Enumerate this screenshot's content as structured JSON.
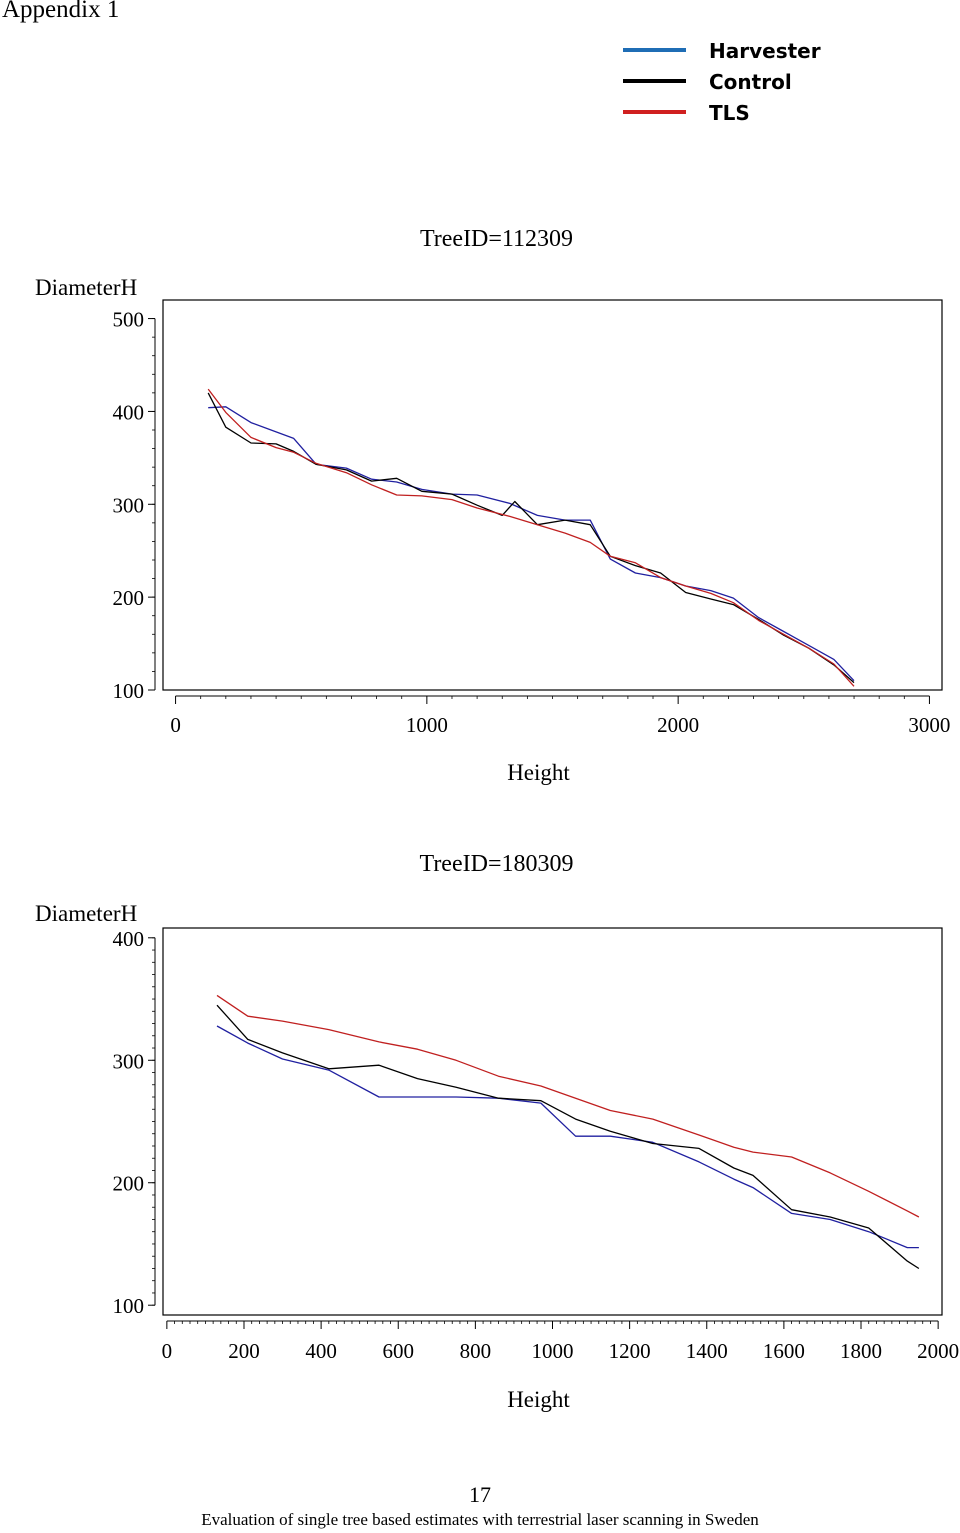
{
  "header": {
    "title": "Appendix 1"
  },
  "legend": {
    "entries": [
      {
        "label": "Harvester",
        "color": "#1f6db5"
      },
      {
        "label": "Control",
        "color": "#000000"
      },
      {
        "label": "TLS",
        "color": "#d02020"
      }
    ]
  },
  "footer": {
    "page_number": "17",
    "text": "Evaluation of single tree based estimates with terrestrial laser scanning in Sweden"
  },
  "chart_data": [
    {
      "type": "line",
      "title": "TreeID=112309",
      "xlabel": "Height",
      "ylabel": "DiameterH",
      "xlim": [
        -50,
        3050
      ],
      "ylim": [
        100,
        520
      ],
      "xticks": [
        0,
        1000,
        2000,
        3000
      ],
      "xtick_labels": [
        "0",
        "1000",
        "2000",
        "3000"
      ],
      "yticks": [
        100,
        200,
        300,
        400,
        500
      ],
      "ytick_labels": [
        "100",
        "200",
        "300",
        "400",
        "500"
      ],
      "grid": false,
      "series": [
        {
          "name": "Harvester",
          "color": "#2020a0",
          "x": [
            130,
            200,
            300,
            400,
            470,
            560,
            680,
            780,
            880,
            980,
            1100,
            1200,
            1330,
            1440,
            1550,
            1650,
            1730,
            1830,
            1930,
            2030,
            2130,
            2220,
            2320,
            2420,
            2520,
            2620,
            2700
          ],
          "y": [
            404,
            405,
            388,
            378,
            371,
            343,
            339,
            327,
            324,
            316,
            311,
            310,
            301,
            288,
            283,
            283,
            241,
            226,
            221,
            212,
            207,
            199,
            178,
            163,
            148,
            133,
            110
          ]
        },
        {
          "name": "Control",
          "color": "#000000",
          "x": [
            130,
            200,
            300,
            400,
            470,
            560,
            680,
            780,
            880,
            980,
            1100,
            1200,
            1300,
            1350,
            1440,
            1550,
            1650,
            1730,
            1830,
            1930,
            2030,
            2130,
            2220,
            2320,
            2420,
            2520,
            2620,
            2700
          ],
          "y": [
            420,
            383,
            366,
            365,
            357,
            343,
            337,
            325,
            328,
            314,
            311,
            299,
            288,
            303,
            278,
            283,
            278,
            244,
            234,
            226,
            205,
            198,
            192,
            176,
            159,
            145,
            127,
            108
          ]
        },
        {
          "name": "TLS",
          "color": "#c02020",
          "x": [
            130,
            200,
            300,
            400,
            470,
            560,
            680,
            780,
            880,
            980,
            1100,
            1200,
            1330,
            1440,
            1550,
            1650,
            1730,
            1830,
            1930,
            2030,
            2130,
            2220,
            2320,
            2420,
            2520,
            2620,
            2700
          ],
          "y": [
            424,
            399,
            372,
            361,
            356,
            344,
            334,
            321,
            310,
            309,
            305,
            296,
            287,
            278,
            269,
            259,
            244,
            237,
            221,
            212,
            204,
            194,
            175,
            160,
            145,
            128,
            104
          ]
        }
      ]
    },
    {
      "type": "line",
      "title": "TreeID=180309",
      "xlabel": "Height",
      "ylabel": "DiameterH",
      "xlim": [
        -10,
        2010
      ],
      "ylim": [
        92,
        408
      ],
      "xticks": [
        0,
        200,
        400,
        600,
        800,
        1000,
        1200,
        1400,
        1600,
        1800,
        2000
      ],
      "xtick_labels": [
        "0",
        "200",
        "400",
        "600",
        "800",
        "1000",
        "1200",
        "1400",
        "1600",
        "1800",
        "2000"
      ],
      "yticks": [
        100,
        200,
        300,
        400
      ],
      "ytick_labels": [
        "100",
        "200",
        "300",
        "400"
      ],
      "grid": false,
      "series": [
        {
          "name": "Harvester",
          "color": "#2020a0",
          "x": [
            130,
            210,
            300,
            420,
            550,
            650,
            750,
            860,
            970,
            1060,
            1150,
            1260,
            1380,
            1470,
            1520,
            1620,
            1720,
            1820,
            1920,
            1950
          ],
          "y": [
            328,
            314,
            301,
            292,
            270,
            270,
            270,
            269,
            265,
            238,
            238,
            233,
            217,
            203,
            196,
            175,
            170,
            160,
            147,
            147
          ]
        },
        {
          "name": "Control",
          "color": "#000000",
          "x": [
            130,
            210,
            300,
            420,
            550,
            650,
            750,
            860,
            970,
            1060,
            1150,
            1260,
            1380,
            1470,
            1520,
            1620,
            1720,
            1820,
            1920,
            1950
          ],
          "y": [
            345,
            317,
            306,
            293,
            296,
            285,
            278,
            269,
            267,
            252,
            242,
            232,
            228,
            212,
            206,
            178,
            172,
            163,
            136,
            130
          ]
        },
        {
          "name": "TLS",
          "color": "#c02020",
          "x": [
            130,
            210,
            300,
            420,
            550,
            650,
            750,
            860,
            970,
            1060,
            1150,
            1260,
            1380,
            1470,
            1520,
            1620,
            1720,
            1820,
            1920,
            1950
          ],
          "y": [
            353,
            336,
            332,
            325,
            315,
            309,
            300,
            287,
            279,
            269,
            259,
            252,
            239,
            229,
            225,
            221,
            208,
            193,
            177,
            172
          ]
        }
      ]
    }
  ]
}
